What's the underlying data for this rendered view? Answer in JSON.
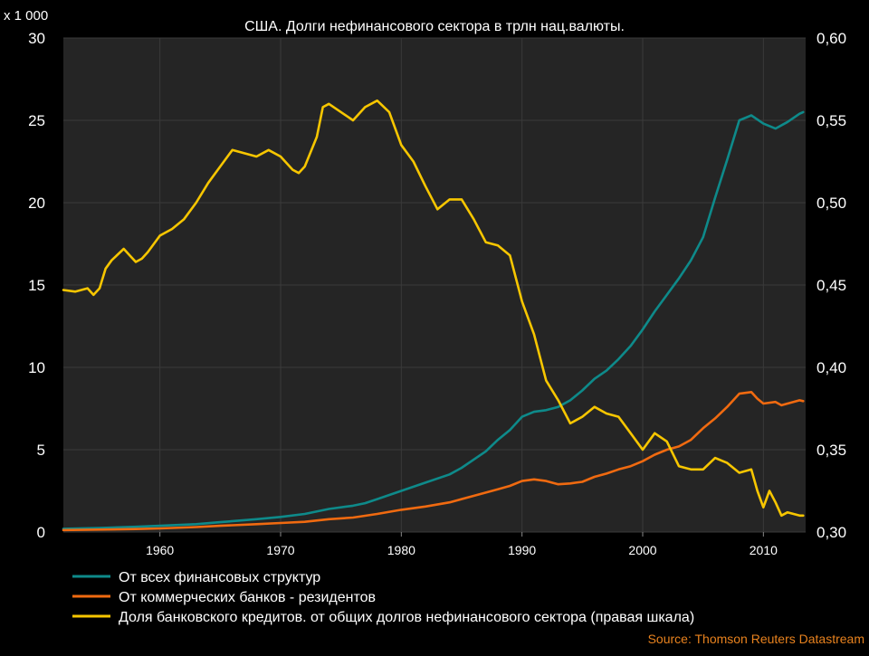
{
  "chart_data": {
    "type": "line",
    "title": "США. Долги нефинансового сектора в трлн нац.валюты.",
    "scale_note": "x 1 000",
    "source": "Source: Thomson Reuters Datastream",
    "xlim": [
      1952,
      2013.5
    ],
    "x_ticks": [
      "1960",
      "1970",
      "1980",
      "1990",
      "2000",
      "2010"
    ],
    "x_tick_values": [
      1960,
      1970,
      1980,
      1990,
      2000,
      2010
    ],
    "ylim_left": [
      0,
      30
    ],
    "y_ticks_left": [
      "0",
      "5",
      "10",
      "15",
      "20",
      "25",
      "30"
    ],
    "y_tick_values_left": [
      0,
      5,
      10,
      15,
      20,
      25,
      30
    ],
    "ylim_right": [
      0.3,
      0.6
    ],
    "y_ticks_right": [
      "0,30",
      "0,35",
      "0,40",
      "0,45",
      "0,50",
      "0,55",
      "0,60"
    ],
    "y_tick_values_right": [
      0.3,
      0.35,
      0.4,
      0.45,
      0.5,
      0.55,
      0.6
    ],
    "grid": true,
    "legend_position": "bottom-left",
    "colors": {
      "background": "#000000",
      "plot_background": "#252525",
      "grid": "#3a3a3a",
      "text": "#ffffff",
      "source": "#e8821e"
    },
    "series": [
      {
        "name": "От всех финансовых структур",
        "axis": "left",
        "color": "#0e8a8a",
        "points": [
          [
            1952,
            0.2
          ],
          [
            1955,
            0.25
          ],
          [
            1958,
            0.32
          ],
          [
            1960,
            0.38
          ],
          [
            1963,
            0.48
          ],
          [
            1965,
            0.6
          ],
          [
            1968,
            0.78
          ],
          [
            1970,
            0.92
          ],
          [
            1972,
            1.1
          ],
          [
            1974,
            1.4
          ],
          [
            1976,
            1.6
          ],
          [
            1977,
            1.75
          ],
          [
            1978,
            2.0
          ],
          [
            1980,
            2.5
          ],
          [
            1982,
            3.0
          ],
          [
            1984,
            3.5
          ],
          [
            1985,
            3.9
          ],
          [
            1987,
            4.9
          ],
          [
            1988,
            5.6
          ],
          [
            1989,
            6.2
          ],
          [
            1990,
            7.0
          ],
          [
            1991,
            7.3
          ],
          [
            1992,
            7.4
          ],
          [
            1993,
            7.6
          ],
          [
            1994,
            8.0
          ],
          [
            1995,
            8.6
          ],
          [
            1996,
            9.3
          ],
          [
            1997,
            9.8
          ],
          [
            1998,
            10.5
          ],
          [
            1999,
            11.3
          ],
          [
            2000,
            12.3
          ],
          [
            2001,
            13.4
          ],
          [
            2002,
            14.4
          ],
          [
            2003,
            15.4
          ],
          [
            2004,
            16.5
          ],
          [
            2005,
            17.9
          ],
          [
            2006,
            20.3
          ],
          [
            2007,
            22.6
          ],
          [
            2008,
            25.0
          ],
          [
            2009,
            25.3
          ],
          [
            2010,
            24.8
          ],
          [
            2011,
            24.5
          ],
          [
            2012,
            24.9
          ],
          [
            2013,
            25.4
          ],
          [
            2013.3,
            25.5
          ]
        ]
      },
      {
        "name": "От коммерческих банков - резидентов",
        "axis": "left",
        "color": "#f06a10",
        "points": [
          [
            1952,
            0.12
          ],
          [
            1955,
            0.15
          ],
          [
            1958,
            0.18
          ],
          [
            1960,
            0.22
          ],
          [
            1963,
            0.3
          ],
          [
            1965,
            0.38
          ],
          [
            1968,
            0.48
          ],
          [
            1970,
            0.55
          ],
          [
            1972,
            0.62
          ],
          [
            1974,
            0.78
          ],
          [
            1976,
            0.88
          ],
          [
            1978,
            1.1
          ],
          [
            1980,
            1.35
          ],
          [
            1982,
            1.55
          ],
          [
            1984,
            1.8
          ],
          [
            1986,
            2.2
          ],
          [
            1988,
            2.6
          ],
          [
            1989,
            2.8
          ],
          [
            1990,
            3.1
          ],
          [
            1991,
            3.2
          ],
          [
            1992,
            3.1
          ],
          [
            1993,
            2.9
          ],
          [
            1994,
            2.95
          ],
          [
            1995,
            3.05
          ],
          [
            1996,
            3.35
          ],
          [
            1997,
            3.55
          ],
          [
            1998,
            3.8
          ],
          [
            1999,
            4.0
          ],
          [
            2000,
            4.3
          ],
          [
            2001,
            4.7
          ],
          [
            2002,
            5.0
          ],
          [
            2003,
            5.2
          ],
          [
            2004,
            5.6
          ],
          [
            2005,
            6.3
          ],
          [
            2006,
            6.9
          ],
          [
            2007,
            7.6
          ],
          [
            2008,
            8.4
          ],
          [
            2009,
            8.5
          ],
          [
            2009.5,
            8.1
          ],
          [
            2010,
            7.8
          ],
          [
            2011,
            7.9
          ],
          [
            2011.5,
            7.7
          ],
          [
            2012,
            7.8
          ],
          [
            2013,
            8.0
          ],
          [
            2013.3,
            7.95
          ]
        ]
      },
      {
        "name": "Доля банковского кредитов. от общих долгов нефинансового сектора (правая шкала)",
        "axis": "right",
        "color": "#f7c600",
        "points": [
          [
            1952,
            0.447
          ],
          [
            1953,
            0.446
          ],
          [
            1954,
            0.448
          ],
          [
            1954.5,
            0.444
          ],
          [
            1955,
            0.448
          ],
          [
            1955.5,
            0.46
          ],
          [
            1956,
            0.465
          ],
          [
            1957,
            0.472
          ],
          [
            1957.5,
            0.468
          ],
          [
            1958,
            0.464
          ],
          [
            1958.5,
            0.466
          ],
          [
            1959,
            0.47
          ],
          [
            1960,
            0.48
          ],
          [
            1961,
            0.484
          ],
          [
            1962,
            0.49
          ],
          [
            1963,
            0.5
          ],
          [
            1964,
            0.512
          ],
          [
            1965,
            0.522
          ],
          [
            1966,
            0.532
          ],
          [
            1967,
            0.53
          ],
          [
            1968,
            0.528
          ],
          [
            1969,
            0.532
          ],
          [
            1970,
            0.528
          ],
          [
            1971,
            0.52
          ],
          [
            1971.5,
            0.518
          ],
          [
            1972,
            0.522
          ],
          [
            1973,
            0.54
          ],
          [
            1973.5,
            0.558
          ],
          [
            1974,
            0.56
          ],
          [
            1975,
            0.555
          ],
          [
            1976,
            0.55
          ],
          [
            1977,
            0.558
          ],
          [
            1978,
            0.562
          ],
          [
            1979,
            0.555
          ],
          [
            1980,
            0.535
          ],
          [
            1981,
            0.525
          ],
          [
            1982,
            0.51
          ],
          [
            1983,
            0.496
          ],
          [
            1984,
            0.502
          ],
          [
            1985,
            0.502
          ],
          [
            1986,
            0.49
          ],
          [
            1987,
            0.476
          ],
          [
            1988,
            0.474
          ],
          [
            1989,
            0.468
          ],
          [
            1990,
            0.44
          ],
          [
            1991,
            0.42
          ],
          [
            1992,
            0.392
          ],
          [
            1993,
            0.38
          ],
          [
            1994,
            0.366
          ],
          [
            1995,
            0.37
          ],
          [
            1996,
            0.376
          ],
          [
            1997,
            0.372
          ],
          [
            1998,
            0.37
          ],
          [
            1999,
            0.36
          ],
          [
            2000,
            0.35
          ],
          [
            2001,
            0.36
          ],
          [
            2002,
            0.355
          ],
          [
            2003,
            0.34
          ],
          [
            2004,
            0.338
          ],
          [
            2005,
            0.338
          ],
          [
            2006,
            0.345
          ],
          [
            2007,
            0.342
          ],
          [
            2008,
            0.336
          ],
          [
            2009,
            0.338
          ],
          [
            2009.5,
            0.325
          ],
          [
            2010,
            0.315
          ],
          [
            2010.5,
            0.325
          ],
          [
            2011,
            0.318
          ],
          [
            2011.5,
            0.31
          ],
          [
            2012,
            0.312
          ],
          [
            2013,
            0.31
          ],
          [
            2013.3,
            0.31
          ]
        ]
      }
    ]
  }
}
